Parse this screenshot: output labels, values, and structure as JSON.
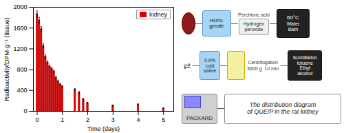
{
  "chart_data": {
    "type": "bar",
    "xlabel": "Time (days)",
    "ylabel": "Radioactivity/DPM·g⁻¹ (tissue)",
    "x": [
      0,
      0.0833,
      0.1667,
      0.25,
      0.333,
      0.417,
      0.5,
      0.583,
      0.667,
      0.75,
      0.833,
      0.917,
      1.0,
      1.5,
      1.667,
      1.833,
      2.0,
      3.0,
      4.0,
      5.0
    ],
    "series": [
      {
        "name": "kidney",
        "color": "#dd0000",
        "values": [
          1870,
          1750,
          1580,
          1260,
          1050,
          940,
          860,
          820,
          770,
          650,
          580,
          520,
          480,
          420,
          360,
          230,
          160,
          110,
          130,
          60
        ],
        "errors": [
          60,
          55,
          50,
          40,
          35,
          30,
          28,
          25,
          24,
          22,
          20,
          18,
          18,
          20,
          18,
          15,
          12,
          12,
          15,
          8
        ]
      }
    ],
    "xlim": [
      -0.15,
      5.4
    ],
    "xticks": [
      0,
      1,
      2,
      3,
      4,
      5
    ],
    "ylim": [
      0,
      2000
    ],
    "yticks": [
      0,
      400,
      800,
      1200,
      1600,
      2000
    ],
    "legend": "upper right",
    "grid": false,
    "annotations": [
      "Homo-\ngenate",
      "Perchloric acid",
      "Hydrogen\nperoxide",
      "60°C",
      "Water\nBath",
      "⇄",
      "0.9%\ncold\nsaline",
      "Centrifugation",
      "3600 g  10 min",
      "Scintillation",
      "toluene",
      "Ethyl",
      "alcohol",
      "PACKARD",
      "The distribution diagram\nof QUE/P in the rat kidney"
    ]
  }
}
